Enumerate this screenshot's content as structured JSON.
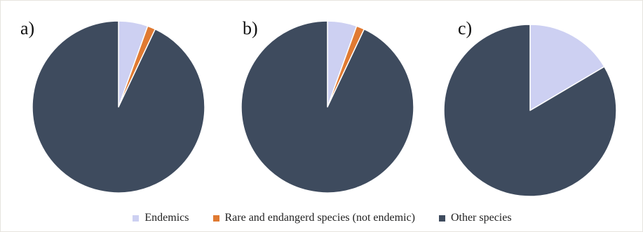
{
  "chart_data": [
    {
      "type": "pie",
      "panel_label": "a)",
      "categories": [
        "Endemics",
        "Rare and endangerd species (not endemic)",
        "Other species"
      ],
      "values": [
        5.5,
        1.5,
        93.0
      ]
    },
    {
      "type": "pie",
      "panel_label": "b)",
      "categories": [
        "Endemics",
        "Rare and endangerd species (not endemic)",
        "Other species"
      ],
      "values": [
        5.5,
        1.5,
        93.0
      ]
    },
    {
      "type": "pie",
      "panel_label": "c)",
      "categories": [
        "Endemics",
        "Rare and endangerd species (not endemic)",
        "Other species"
      ],
      "values": [
        16.5,
        0,
        83.5
      ]
    }
  ],
  "legend": {
    "placement": "bottom",
    "items": [
      {
        "label": "Endemics",
        "color": "#cdd0f2"
      },
      {
        "label": "Rare and endangerd species (not endemic)",
        "color": "#e07a32"
      },
      {
        "label": "Other species",
        "color": "#3e4b5e"
      }
    ]
  },
  "colors": {
    "slice_border": "#ffffff"
  }
}
